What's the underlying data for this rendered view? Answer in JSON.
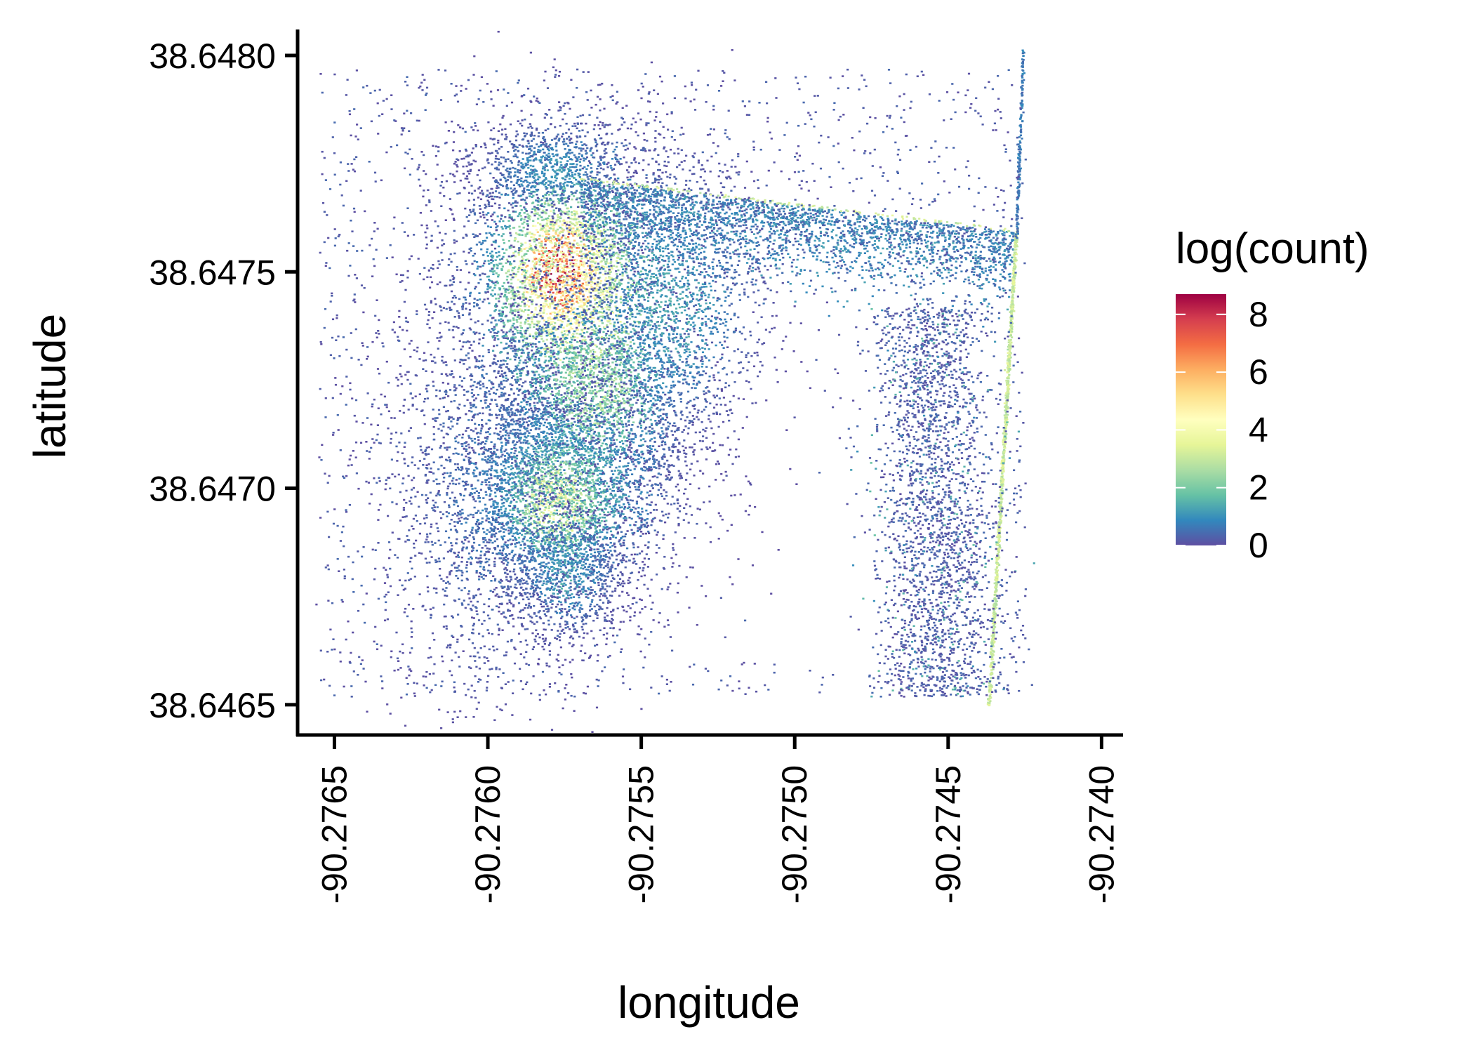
{
  "chart_data": {
    "type": "heatmap",
    "subtype": "hexbin",
    "title": "",
    "xlabel": "longitude",
    "ylabel": "latitude",
    "xlim": [
      -90.27662,
      -90.27393
    ],
    "ylim": [
      38.64643,
      38.64806
    ],
    "x_ticks": [
      -90.2765,
      -90.276,
      -90.2755,
      -90.275,
      -90.2745,
      -90.274
    ],
    "x_tick_labels": [
      "-90.2765",
      "-90.2760",
      "-90.2755",
      "-90.2750",
      "-90.2745",
      "-90.2740"
    ],
    "y_ticks": [
      38.6465,
      38.647,
      38.6475,
      38.648
    ],
    "y_tick_labels": [
      "38.6465",
      "38.6470",
      "38.6475",
      "38.6480"
    ],
    "grid": false,
    "legend": {
      "title": "log(count)",
      "position": "right",
      "range": [
        0,
        8.7
      ],
      "ticks": [
        0,
        2,
        4,
        6,
        8
      ],
      "tick_labels": [
        "0",
        "2",
        "4",
        "6",
        "8"
      ],
      "palette": "Spectral (reversed)",
      "colors": [
        "#5E4FA2",
        "#3288BD",
        "#66C2A5",
        "#ABDDA4",
        "#E6F598",
        "#FFFFBF",
        "#FEE08B",
        "#FDAE61",
        "#F46D43",
        "#D53E4F",
        "#9E0142"
      ]
    },
    "density_regions": [
      {
        "region": "north-west hotspot",
        "lon": -90.27577,
        "lat": 38.64749,
        "peak_log_count": 8
      },
      {
        "region": "south-west cluster",
        "lon": -90.27578,
        "lat": 38.64697,
        "peak_log_count": 4
      },
      {
        "region": "central-west corridor",
        "lon": -90.27565,
        "lat": 38.64725,
        "peak_log_count": 3
      },
      {
        "region": "north edge path",
        "lon_range": [
          -90.2757,
          -90.2743
        ],
        "lat_range": [
          38.64772,
          38.6476
        ],
        "peak_log_count": 3
      },
      {
        "region": "east edge path",
        "lon_range": [
          -90.27428,
          -90.27436
        ],
        "lat_range": [
          38.6476,
          38.6465
        ],
        "peak_log_count": 3
      },
      {
        "region": "south-east patch",
        "lon_range": [
          -90.2748,
          -90.2743
        ],
        "lat_range": [
          38.6465,
          38.6474
        ],
        "peak_log_count": 1
      }
    ]
  }
}
